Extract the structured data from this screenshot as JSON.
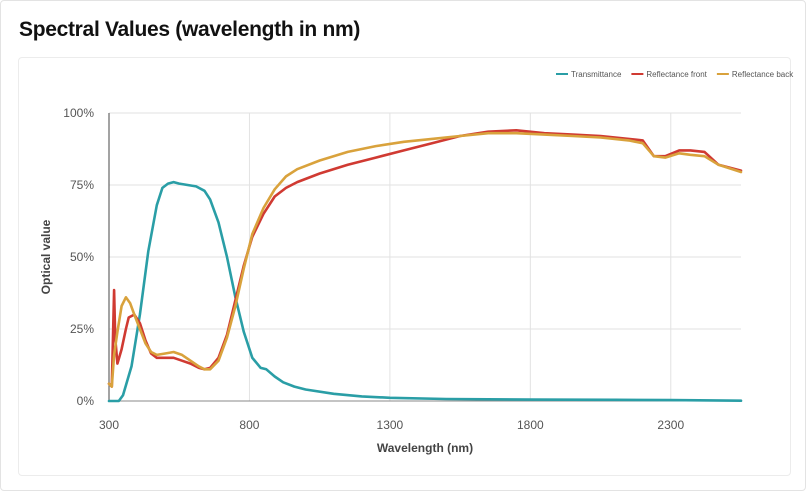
{
  "page": {
    "title": "Spectral Values (wavelength in nm)"
  },
  "chart_data": {
    "type": "line",
    "xlabel": "Wavelength (nm)",
    "ylabel": "Optical value",
    "xlim": [
      300,
      2550
    ],
    "ylim": [
      0,
      100
    ],
    "x_ticks": [
      300,
      800,
      1300,
      1800,
      2300
    ],
    "y_ticks": [
      0,
      25,
      50,
      75,
      100
    ],
    "y_tick_labels": [
      "0%",
      "25%",
      "50%",
      "75%",
      "100%"
    ],
    "grid": true,
    "legend_position": "top-right",
    "series": [
      {
        "name": "Transmittance",
        "color": "#2a9ea6",
        "points": [
          [
            300,
            0
          ],
          [
            335,
            0
          ],
          [
            350,
            2
          ],
          [
            380,
            12
          ],
          [
            410,
            30
          ],
          [
            440,
            52
          ],
          [
            470,
            68
          ],
          [
            490,
            74
          ],
          [
            510,
            75.5
          ],
          [
            530,
            76
          ],
          [
            550,
            75.5
          ],
          [
            580,
            75
          ],
          [
            610,
            74.5
          ],
          [
            640,
            73
          ],
          [
            660,
            70
          ],
          [
            690,
            62
          ],
          [
            720,
            50
          ],
          [
            750,
            36
          ],
          [
            780,
            24
          ],
          [
            810,
            15
          ],
          [
            840,
            11.5
          ],
          [
            860,
            11
          ],
          [
            890,
            8.5
          ],
          [
            920,
            6.5
          ],
          [
            960,
            5
          ],
          [
            1000,
            4
          ],
          [
            1100,
            2.5
          ],
          [
            1200,
            1.6
          ],
          [
            1300,
            1.1
          ],
          [
            1500,
            0.7
          ],
          [
            1800,
            0.5
          ],
          [
            2100,
            0.4
          ],
          [
            2300,
            0.3
          ],
          [
            2550,
            0.1
          ]
        ]
      },
      {
        "name": "Reflectance front",
        "color": "#d03a32",
        "points": [
          [
            300,
            6
          ],
          [
            310,
            5
          ],
          [
            318,
            38.5
          ],
          [
            322,
            22
          ],
          [
            330,
            13
          ],
          [
            345,
            18
          ],
          [
            360,
            25
          ],
          [
            370,
            29
          ],
          [
            390,
            30
          ],
          [
            410,
            27
          ],
          [
            430,
            21
          ],
          [
            450,
            16.5
          ],
          [
            470,
            15
          ],
          [
            500,
            15
          ],
          [
            530,
            15
          ],
          [
            560,
            14
          ],
          [
            590,
            13
          ],
          [
            620,
            11.5
          ],
          [
            640,
            11
          ],
          [
            660,
            11.5
          ],
          [
            690,
            15
          ],
          [
            720,
            23
          ],
          [
            750,
            35
          ],
          [
            780,
            47
          ],
          [
            810,
            57
          ],
          [
            850,
            65
          ],
          [
            890,
            71
          ],
          [
            930,
            74
          ],
          [
            970,
            76
          ],
          [
            1050,
            79
          ],
          [
            1150,
            82
          ],
          [
            1250,
            84.5
          ],
          [
            1350,
            87
          ],
          [
            1450,
            89.5
          ],
          [
            1550,
            92
          ],
          [
            1650,
            93.5
          ],
          [
            1750,
            94
          ],
          [
            1850,
            93
          ],
          [
            1950,
            92.5
          ],
          [
            2050,
            92
          ],
          [
            2150,
            91
          ],
          [
            2200,
            90.5
          ],
          [
            2240,
            85
          ],
          [
            2280,
            85
          ],
          [
            2330,
            87
          ],
          [
            2370,
            87
          ],
          [
            2420,
            86.5
          ],
          [
            2470,
            82
          ],
          [
            2550,
            80
          ]
        ]
      },
      {
        "name": "Reflectance back",
        "color": "#d9a23c",
        "points": [
          [
            300,
            6
          ],
          [
            310,
            5
          ],
          [
            318,
            16
          ],
          [
            330,
            24
          ],
          [
            345,
            33
          ],
          [
            360,
            36
          ],
          [
            375,
            34
          ],
          [
            390,
            30
          ],
          [
            410,
            25
          ],
          [
            430,
            20
          ],
          [
            450,
            17
          ],
          [
            470,
            16
          ],
          [
            500,
            16.5
          ],
          [
            530,
            17
          ],
          [
            560,
            16
          ],
          [
            590,
            14
          ],
          [
            620,
            12
          ],
          [
            640,
            11
          ],
          [
            660,
            11
          ],
          [
            690,
            14
          ],
          [
            720,
            22
          ],
          [
            750,
            33
          ],
          [
            780,
            46
          ],
          [
            810,
            58
          ],
          [
            850,
            67
          ],
          [
            890,
            73.5
          ],
          [
            930,
            78
          ],
          [
            970,
            80.5
          ],
          [
            1050,
            83.5
          ],
          [
            1150,
            86.5
          ],
          [
            1250,
            88.5
          ],
          [
            1350,
            90
          ],
          [
            1450,
            91
          ],
          [
            1550,
            92
          ],
          [
            1650,
            93
          ],
          [
            1750,
            93
          ],
          [
            1850,
            92.5
          ],
          [
            1950,
            92
          ],
          [
            2050,
            91.5
          ],
          [
            2150,
            90.5
          ],
          [
            2200,
            89.5
          ],
          [
            2240,
            85
          ],
          [
            2280,
            84.5
          ],
          [
            2330,
            86
          ],
          [
            2370,
            85.5
          ],
          [
            2420,
            85
          ],
          [
            2470,
            82
          ],
          [
            2550,
            79.5
          ]
        ]
      }
    ]
  }
}
